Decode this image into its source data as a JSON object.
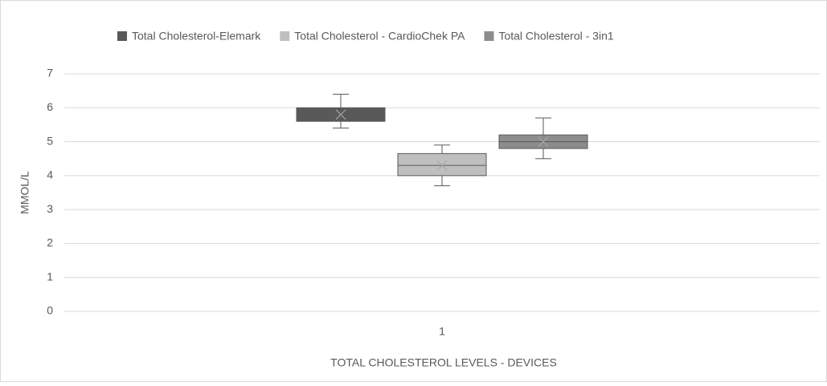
{
  "chart_data": {
    "type": "box",
    "x_label": "TOTAL CHOLESTEROL LEVELS - DEVICES",
    "y_label": "MMOL/L",
    "categories": [
      "1"
    ],
    "ylim": [
      0,
      7
    ],
    "yticks": [
      0,
      1,
      2,
      3,
      4,
      5,
      6,
      7
    ],
    "grid": true,
    "legend": "top",
    "series": [
      {
        "name": "Total Cholesterol-Elemark",
        "color": "#595959",
        "min": [
          5.4
        ],
        "q1": [
          5.6
        ],
        "median": [
          5.8
        ],
        "q3": [
          6.0
        ],
        "max": [
          6.4
        ],
        "mean": [
          5.8
        ]
      },
      {
        "name": "Total Cholesterol - CardioChek PA",
        "color": "#bfbfbf",
        "min": [
          3.7
        ],
        "q1": [
          4.0
        ],
        "median": [
          4.3
        ],
        "q3": [
          4.65
        ],
        "max": [
          4.9
        ],
        "mean": [
          4.3
        ]
      },
      {
        "name": "Total Cholesterol - 3in1",
        "color": "#8c8c8c",
        "min": [
          4.5
        ],
        "q1": [
          4.8
        ],
        "median": [
          5.0
        ],
        "q3": [
          5.2
        ],
        "max": [
          5.7
        ],
        "mean": [
          5.0
        ]
      }
    ]
  }
}
